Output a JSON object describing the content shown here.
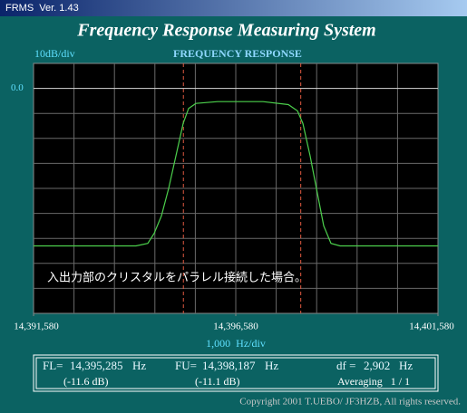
{
  "window": {
    "title": "FRMS  Ver. 1.43"
  },
  "app_title": "Frequency Response Measuring System",
  "chart_data": {
    "type": "line",
    "title": "FREQUENCY RESPONSE",
    "y_label": "10dB/div",
    "x_label": "1,000  Hz/div",
    "annotation": "入出力部のクリスタルをパラレル接続した場合。",
    "xlim": [
      14391580,
      14401580
    ],
    "ylim": [
      -90,
      10
    ],
    "xticks": [
      {
        "value": 14391580,
        "label": "14,391,580"
      },
      {
        "value": 14396580,
        "label": "14,396,580"
      },
      {
        "value": 14401580,
        "label": "14,401,580"
      }
    ],
    "yticks": [
      {
        "value": 0,
        "label": "0.0"
      }
    ],
    "xgrid": [
      14392580,
      14393580,
      14394580,
      14395580,
      14396580,
      14397580,
      14398580,
      14399580,
      14400580
    ],
    "ygrid": [
      -80,
      -70,
      -60,
      -50,
      -40,
      -30,
      -20,
      -10
    ],
    "grid": true,
    "x": [
      14391580,
      14394114,
      14394405,
      14394562,
      14394741,
      14394921,
      14395100,
      14395280,
      14395414,
      14395593,
      14396132,
      14397253,
      14397880,
      14398105,
      14398239,
      14398419,
      14398598,
      14398755,
      14398934,
      14399158,
      14401580
    ],
    "series": [
      {
        "color": "#4cd04c",
        "values": [
          -63,
          -63,
          -62,
          -58,
          -51,
          -40,
          -27,
          -14,
          -8,
          -6,
          -5.3,
          -5.3,
          -6.5,
          -9,
          -14,
          -27,
          -42,
          -55,
          -62,
          -63,
          -63
        ]
      }
    ],
    "cursors": [
      {
        "name": "FL=",
        "value": 14395285,
        "label": "14,395,285",
        "unit": "Hz",
        "level": "(-11.6 dB)",
        "color": "#e05a40"
      },
      {
        "name": "FU=",
        "value": 14398187,
        "label": "14,398,187",
        "unit": "Hz",
        "level": "(-11.1 dB)",
        "color": "#e05a40"
      }
    ],
    "df": {
      "name": "df =",
      "value": 2902,
      "label": "2,902",
      "unit": "Hz"
    },
    "averaging": "Averaging   1 / 1"
  },
  "footer": "Copyright 2001 T.UEBO/ JF3HZB, All rights reserved."
}
